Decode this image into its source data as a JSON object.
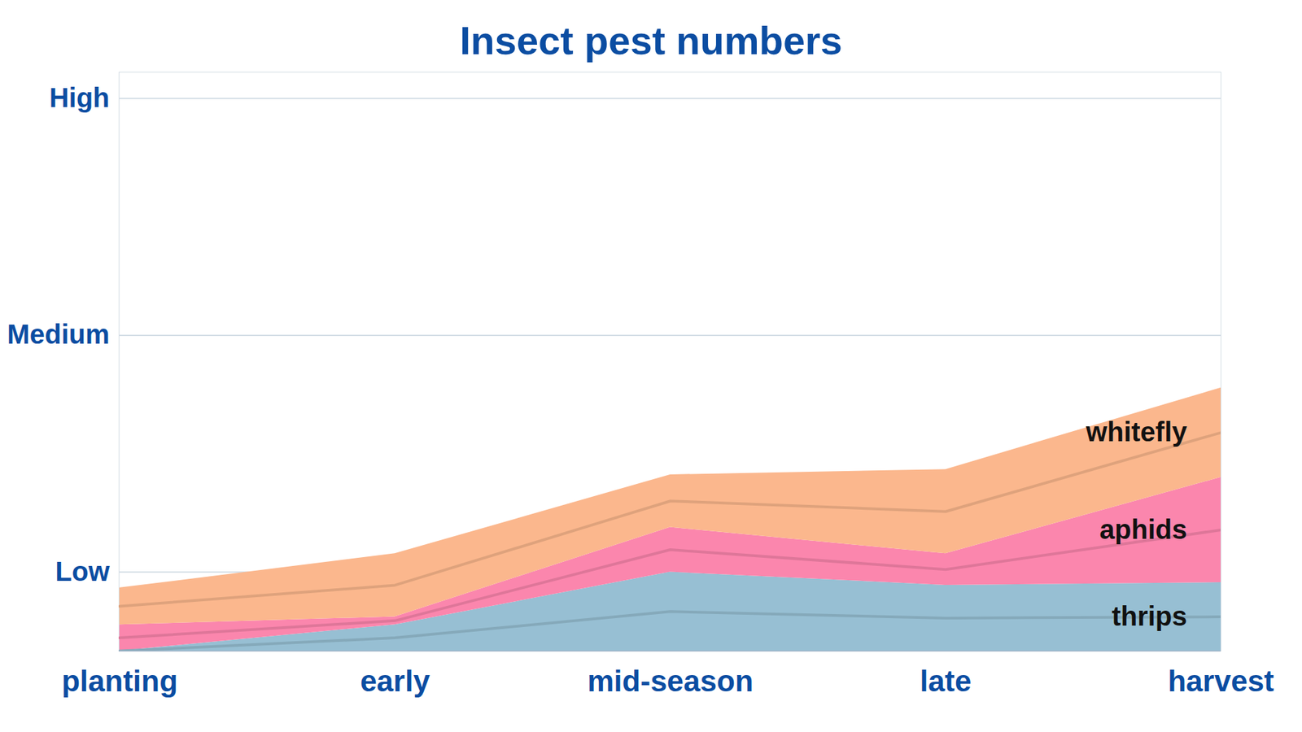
{
  "chart_data": {
    "type": "area",
    "title": "Insect pest numbers",
    "categories": [
      "planting",
      "early",
      "mid-season",
      "late",
      "harvest"
    ],
    "stacked": true,
    "series": [
      {
        "name": "thrips",
        "color": "#97bfd3",
        "values": [
          0,
          0.5,
          1.5,
          1.25,
          1.3
        ]
      },
      {
        "name": "aphids",
        "color": "#fb86ad",
        "values": [
          0.5,
          0.15,
          0.85,
          0.6,
          2.0
        ]
      },
      {
        "name": "whitefly",
        "color": "#fbb78d",
        "values": [
          0.7,
          1.2,
          1.0,
          1.6,
          1.7
        ]
      }
    ],
    "ylim": [
      0,
      11
    ],
    "yticks": [
      {
        "value": 1.5,
        "label": "Low"
      },
      {
        "value": 6,
        "label": "Medium"
      },
      {
        "value": 10.5,
        "label": "High"
      }
    ],
    "grid": true
  }
}
